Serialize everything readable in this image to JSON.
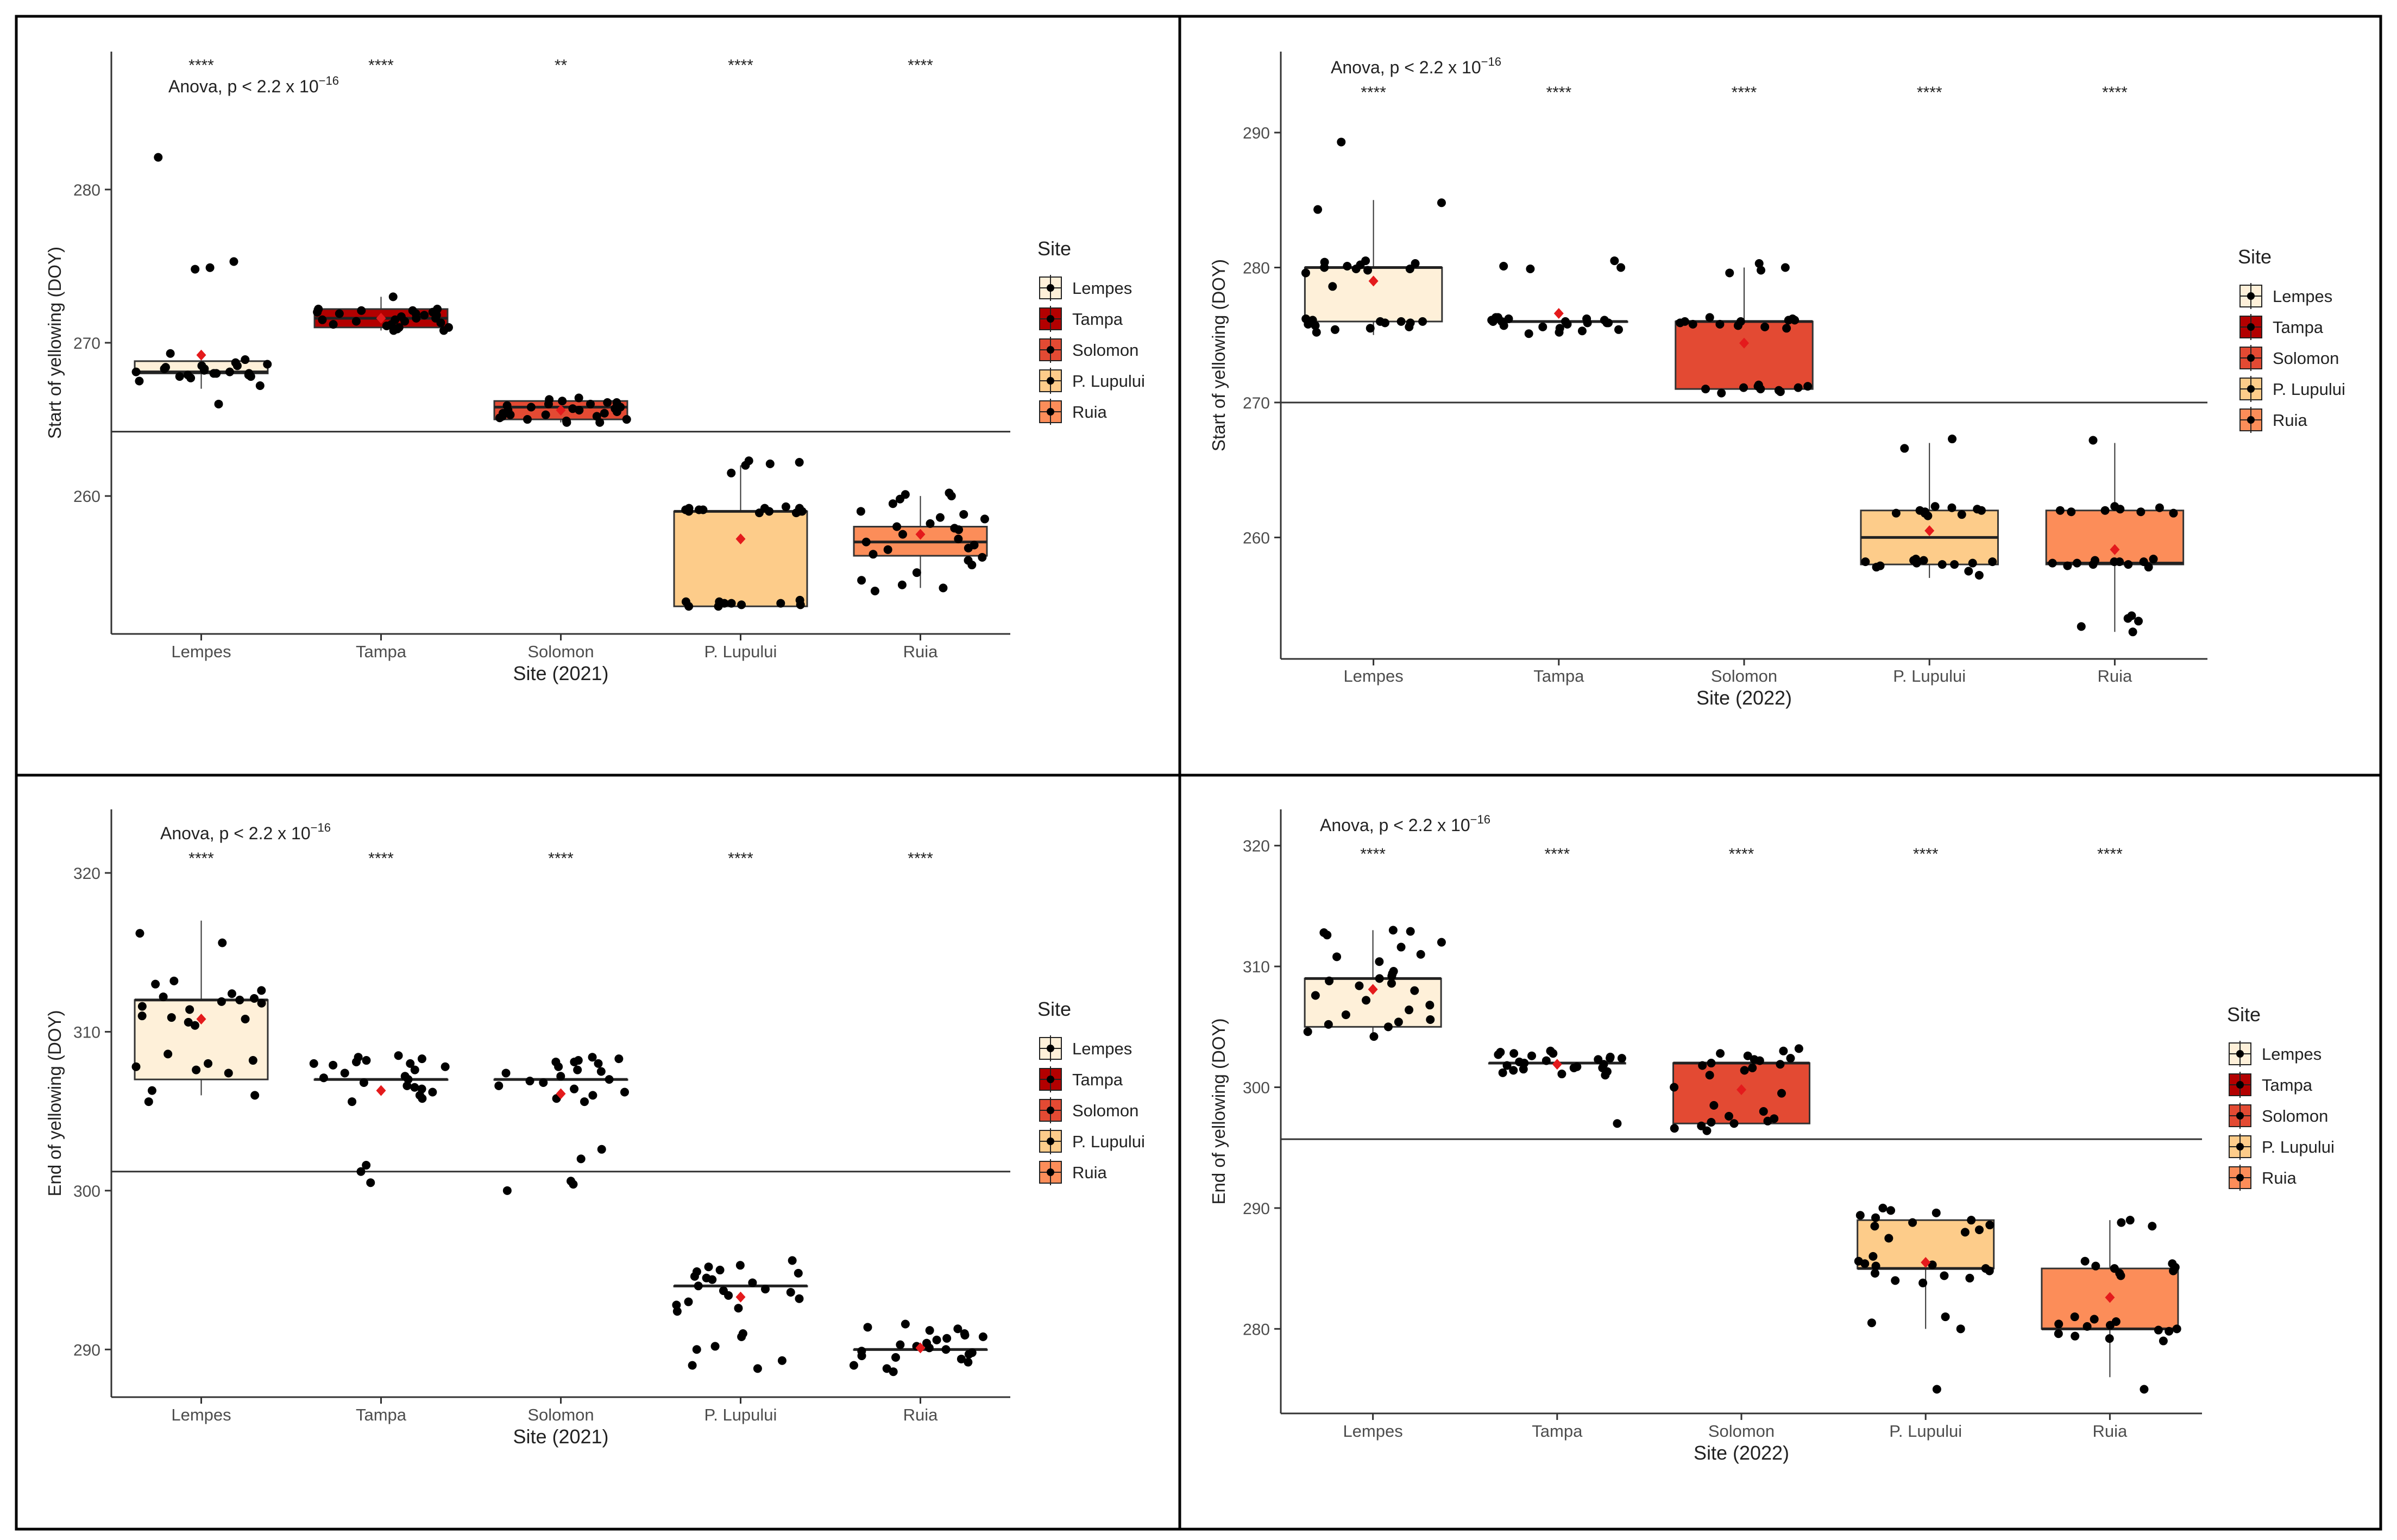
{
  "legend": {
    "title": "Site",
    "items": [
      {
        "label": "Lempes",
        "color": "#FEF0D9"
      },
      {
        "label": "Tampa",
        "color": "#B30000"
      },
      {
        "label": "Solomon",
        "color": "#E34A33"
      },
      {
        "label": "P. Lupului",
        "color": "#FDCC8A"
      },
      {
        "label": "Ruia",
        "color": "#FC8D59"
      }
    ]
  },
  "colors": {
    "mean_marker": "#E41A1C",
    "points": "#000000",
    "panel_border": "#000000"
  },
  "chart_data": [
    {
      "type": "box",
      "ylabel": "Start of yellowing (DOY)",
      "xlabel": "Site  (2021)",
      "anova": {
        "prefix": "Anova, p < 2.2 x 10",
        "exponent": "−16"
      },
      "categories": [
        "Lempes",
        "Tampa",
        "Solomon",
        "P. Lupului",
        "Ruia"
      ],
      "significance": [
        "****",
        "****",
        "**",
        "****",
        "****"
      ],
      "ylim": [
        251,
        289
      ],
      "yticks": [
        260,
        270,
        280
      ],
      "reference_line": 264.2,
      "boxes": [
        {
          "q1": 268.0,
          "median": 268.1,
          "q3": 268.8,
          "lower": 267.0,
          "upper": 269.0,
          "mean": 269.2
        },
        {
          "q1": 271.0,
          "median": 271.6,
          "q3": 272.2,
          "lower": 270.8,
          "upper": 273.0,
          "mean": 271.6
        },
        {
          "q1": 265.0,
          "median": 265.8,
          "q3": 266.2,
          "lower": 264.8,
          "upper": 266.4,
          "mean": 265.6
        },
        {
          "q1": 252.8,
          "median": 259.0,
          "q3": 259.0,
          "lower": 252.8,
          "upper": 262.0,
          "mean": 257.2
        },
        {
          "q1": 256.1,
          "median": 257.0,
          "q3": 258.0,
          "lower": 254.0,
          "upper": 260.0,
          "mean": 257.5
        }
      ],
      "points": [
        [
          282.1,
          275.3,
          274.9,
          274.8,
          269.3,
          268.9,
          268.7,
          268.5,
          268.3,
          268.2,
          268.1,
          268.0,
          268.0,
          267.9,
          267.9,
          267.8,
          267.7,
          268.4,
          268.6,
          268.1,
          267.8,
          268.0,
          267.5,
          266.0,
          267.2,
          268.3,
          268.5
        ],
        [
          273.0,
          272.2,
          272.1,
          272.0,
          271.9,
          271.8,
          271.7,
          271.6,
          271.5,
          271.4,
          271.3,
          271.2,
          271.1,
          271.0,
          270.9,
          270.8,
          272.2,
          272.0,
          271.8,
          271.6,
          271.4,
          271.2,
          271.0,
          270.8,
          272.1,
          271.5,
          271.9
        ],
        [
          266.4,
          266.2,
          266.1,
          266.0,
          265.9,
          265.8,
          265.7,
          265.6,
          265.5,
          265.4,
          265.3,
          265.2,
          265.1,
          265.0,
          264.9,
          264.8,
          266.3,
          266.0,
          265.8,
          265.6,
          265.4,
          265.2,
          265.0,
          264.8,
          266.1,
          265.7,
          265.3
        ],
        [
          262.3,
          262.2,
          262.1,
          262.0,
          261.5,
          259.3,
          259.2,
          259.1,
          259.0,
          259.0,
          258.9,
          259.0,
          259.1,
          259.2,
          259.0,
          258.9,
          253.2,
          253.1,
          253.0,
          252.9,
          252.8,
          252.9,
          253.0,
          253.1,
          252.8,
          253.0,
          259.1,
          259.2
        ],
        [
          260.2,
          260.1,
          260.0,
          259.5,
          259.0,
          258.8,
          258.5,
          258.2,
          258.0,
          257.8,
          257.5,
          257.2,
          257.0,
          256.8,
          256.5,
          256.2,
          256.0,
          255.8,
          255.5,
          255.0,
          254.5,
          254.2,
          254.0,
          253.8,
          258.6,
          257.9,
          256.6,
          259.8
        ]
      ]
    },
    {
      "type": "box",
      "ylabel": "Start of yellowing (DOY)",
      "xlabel": "Site (2022)",
      "anova": {
        "prefix": "Anova, p < 2.2 x 10",
        "exponent": "−16"
      },
      "categories": [
        "Lempes",
        "Tampa",
        "Solomon",
        "P. Lupului",
        "Ruia"
      ],
      "significance": [
        "****",
        "****",
        "****",
        "****",
        "****"
      ],
      "ylim": [
        251,
        296
      ],
      "yticks": [
        260,
        270,
        280,
        290
      ],
      "reference_line": 270.0,
      "boxes": [
        {
          "q1": 276.0,
          "median": 280.0,
          "q3": 280.0,
          "lower": 275.0,
          "upper": 285.0,
          "mean": 279.0
        },
        {
          "q1": 276.0,
          "median": 276.0,
          "q3": 276.0,
          "lower": 276.0,
          "upper": 276.0,
          "mean": 276.6
        },
        {
          "q1": 271.0,
          "median": 276.0,
          "q3": 276.0,
          "lower": 271.0,
          "upper": 280.0,
          "mean": 274.4
        },
        {
          "q1": 258.0,
          "median": 260.0,
          "q3": 262.0,
          "lower": 257.0,
          "upper": 267.0,
          "mean": 260.5
        },
        {
          "q1": 258.0,
          "median": 258.1,
          "q3": 262.0,
          "lower": 253.0,
          "upper": 267.0,
          "mean": 259.1
        }
      ],
      "points": [
        [
          289.3,
          284.8,
          284.3,
          280.5,
          280.3,
          280.2,
          280.1,
          280.0,
          279.9,
          279.8,
          279.6,
          278.6,
          276.0,
          276.0,
          275.9,
          275.8,
          275.7,
          275.6,
          275.5,
          275.4,
          275.2,
          276.1,
          276.2,
          275.9,
          280.4,
          279.9,
          276.0
        ],
        [
          280.5,
          280.1,
          280.0,
          279.9,
          276.3,
          276.2,
          276.1,
          276.0,
          276.0,
          275.9,
          275.8,
          275.7,
          275.6,
          275.5,
          275.4,
          275.3,
          275.2,
          275.1,
          276.1,
          276.0,
          275.9,
          276.2,
          276.3,
          275.9,
          276.0
        ],
        [
          280.3,
          280.0,
          279.8,
          279.6,
          276.3,
          276.2,
          276.1,
          276.0,
          276.0,
          275.9,
          275.8,
          275.7,
          275.6,
          275.5,
          271.3,
          271.2,
          271.1,
          271.0,
          270.9,
          270.8,
          270.7,
          271.0,
          271.2,
          276.1,
          275.8,
          271.1
        ],
        [
          267.3,
          266.6,
          262.3,
          262.2,
          262.1,
          262.0,
          261.9,
          261.8,
          261.7,
          261.6,
          258.4,
          258.3,
          258.2,
          258.1,
          258.0,
          257.9,
          257.8,
          257.5,
          257.2,
          258.2,
          258.1,
          262.0,
          258.3,
          261.8,
          258.0
        ],
        [
          267.2,
          262.3,
          262.2,
          262.1,
          262.0,
          261.9,
          261.8,
          258.4,
          258.3,
          258.2,
          258.1,
          258.0,
          257.9,
          257.8,
          258.2,
          258.1,
          258.0,
          254.2,
          254.0,
          253.8,
          253.4,
          253.0,
          262.0,
          261.9,
          258.2
        ]
      ]
    },
    {
      "type": "box",
      "ylabel": "End of yellowing (DOY)",
      "xlabel": "Site (2021)",
      "anova": {
        "prefix": "Anova, p < 2.2 x 10",
        "exponent": "−16"
      },
      "categories": [
        "Lempes",
        "Tampa",
        "Solomon",
        "P. Lupului",
        "Ruia"
      ],
      "significance": [
        "****",
        "****",
        "****",
        "****",
        "****"
      ],
      "ylim": [
        287,
        324
      ],
      "yticks": [
        290,
        300,
        310,
        320
      ],
      "reference_line": 301.2,
      "boxes": [
        {
          "q1": 307.0,
          "median": 312.0,
          "q3": 312.0,
          "lower": 306.0,
          "upper": 317.0,
          "mean": 310.8
        },
        {
          "q1": 307.0,
          "median": 307.0,
          "q3": 307.0,
          "lower": 307.0,
          "upper": 307.0,
          "mean": 306.3
        },
        {
          "q1": 307.0,
          "median": 307.0,
          "q3": 307.0,
          "lower": 307.0,
          "upper": 307.0,
          "mean": 306.1
        },
        {
          "q1": 294.0,
          "median": 294.0,
          "q3": 294.0,
          "lower": 294.0,
          "upper": 294.0,
          "mean": 293.3
        },
        {
          "q1": 290.0,
          "median": 290.0,
          "q3": 290.0,
          "lower": 290.0,
          "upper": 290.0,
          "mean": 290.1
        }
      ],
      "points": [
        [
          316.2,
          315.6,
          313.2,
          313.0,
          312.6,
          312.4,
          312.2,
          312.0,
          311.8,
          311.6,
          311.4,
          311.0,
          310.8,
          310.6,
          310.4,
          308.6,
          308.2,
          308.0,
          307.8,
          307.6,
          307.4,
          306.3,
          306.0,
          305.6,
          311.9,
          310.9,
          312.1
        ],
        [
          308.5,
          308.4,
          308.3,
          308.2,
          308.1,
          308.0,
          307.9,
          307.8,
          307.6,
          307.4,
          307.2,
          307.0,
          306.8,
          306.6,
          306.4,
          306.2,
          306.0,
          305.8,
          305.6,
          301.6,
          301.2,
          300.5,
          308.0,
          306.5,
          307.1
        ],
        [
          308.4,
          308.3,
          308.2,
          308.1,
          308.0,
          307.8,
          307.6,
          307.4,
          307.2,
          307.0,
          306.8,
          306.6,
          306.4,
          306.2,
          306.0,
          305.8,
          305.6,
          302.6,
          302.0,
          300.6,
          300.4,
          300.0,
          308.1,
          306.9,
          307.5
        ],
        [
          295.6,
          295.3,
          295.2,
          295.0,
          294.9,
          294.8,
          294.6,
          294.4,
          294.2,
          294.0,
          293.8,
          293.6,
          293.4,
          293.2,
          293.0,
          292.8,
          292.6,
          292.4,
          291.0,
          290.8,
          290.2,
          290.0,
          289.3,
          289.0,
          288.8,
          294.5,
          293.7
        ],
        [
          291.6,
          291.4,
          291.2,
          291.0,
          290.8,
          290.6,
          290.4,
          290.2,
          290.1,
          290.0,
          289.9,
          289.8,
          289.6,
          289.4,
          289.2,
          289.0,
          288.8,
          288.6,
          291.3,
          290.7,
          290.3,
          289.5,
          290.9,
          289.7
        ]
      ]
    },
    {
      "type": "box",
      "ylabel": "End of yellowing (DOY)",
      "xlabel": "Site (2022)",
      "anova": {
        "prefix": "Anova, p < 2.2 x 10",
        "exponent": "−16"
      },
      "categories": [
        "Lempes",
        "Tampa",
        "Solomon",
        "P. Lupului",
        "Ruia"
      ],
      "significance": [
        "****",
        "****",
        "****",
        "****",
        "****"
      ],
      "ylim": [
        273,
        323
      ],
      "yticks": [
        280,
        290,
        300,
        310,
        320
      ],
      "reference_line": 295.7,
      "boxes": [
        {
          "q1": 305.0,
          "median": 309.0,
          "q3": 309.0,
          "lower": 304.0,
          "upper": 313.0,
          "mean": 308.1
        },
        {
          "q1": 302.0,
          "median": 302.0,
          "q3": 302.0,
          "lower": 302.0,
          "upper": 302.0,
          "mean": 301.9
        },
        {
          "q1": 297.0,
          "median": 302.0,
          "q3": 302.0,
          "lower": 297.0,
          "upper": 302.0,
          "mean": 299.8
        },
        {
          "q1": 285.0,
          "median": 285.0,
          "q3": 289.0,
          "lower": 280.0,
          "upper": 289.0,
          "mean": 285.5
        },
        {
          "q1": 280.0,
          "median": 280.0,
          "q3": 285.0,
          "lower": 276.0,
          "upper": 289.0,
          "mean": 282.6
        }
      ],
      "points": [
        [
          313.0,
          312.8,
          312.6,
          312.0,
          311.6,
          311.0,
          310.8,
          310.4,
          309.6,
          309.2,
          309.0,
          308.8,
          308.6,
          308.4,
          308.0,
          307.6,
          307.2,
          306.8,
          306.4,
          306.0,
          305.6,
          305.2,
          305.0,
          304.6,
          304.2,
          312.9,
          309.4,
          305.4
        ],
        [
          303.0,
          302.9,
          302.8,
          302.7,
          302.6,
          302.5,
          302.4,
          302.3,
          302.2,
          302.1,
          302.0,
          301.9,
          301.8,
          301.7,
          301.6,
          301.5,
          301.4,
          301.3,
          301.2,
          301.1,
          301.0,
          297.0,
          302.4,
          301.6,
          302.8
        ],
        [
          303.2,
          303.0,
          302.8,
          302.6,
          302.4,
          302.2,
          302.0,
          301.8,
          301.6,
          301.4,
          301.0,
          300.0,
          299.5,
          298.5,
          298.0,
          297.6,
          297.4,
          297.2,
          297.0,
          296.8,
          296.6,
          296.4,
          301.9,
          297.1,
          302.3
        ],
        [
          290.0,
          289.8,
          289.6,
          289.4,
          289.2,
          289.0,
          288.8,
          288.5,
          288.2,
          288.0,
          287.5,
          286.0,
          285.6,
          285.4,
          285.2,
          285.0,
          284.8,
          284.6,
          284.4,
          284.2,
          284.0,
          283.8,
          281.0,
          280.5,
          280.0,
          275.0,
          288.6,
          285.3
        ],
        [
          289.0,
          288.8,
          288.5,
          285.6,
          285.4,
          285.2,
          285.0,
          284.8,
          284.6,
          284.4,
          281.0,
          280.8,
          280.6,
          280.4,
          280.2,
          280.0,
          279.8,
          279.6,
          279.4,
          279.2,
          279.0,
          275.0,
          280.3,
          279.9,
          285.1
        ]
      ]
    }
  ]
}
